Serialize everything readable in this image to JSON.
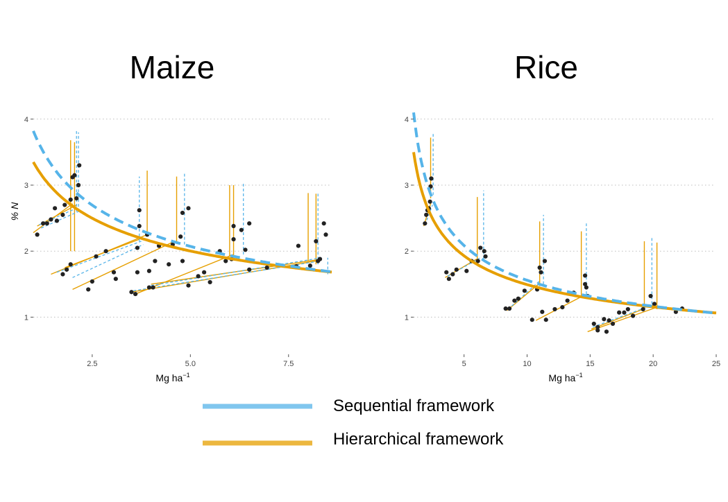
{
  "legend": {
    "items": [
      {
        "label": "Sequential framework",
        "color": "#56B4E9",
        "style": "dashed"
      },
      {
        "label": "Hierarchical framework",
        "color": "#E69F00",
        "style": "solid"
      }
    ]
  },
  "chart_data": [
    {
      "type": "scatter",
      "title": "Maize",
      "xlabel": "Mg ha",
      "xlabel_sup": "−1",
      "ylabel": "% N",
      "xlim": [
        1.0,
        8.6
      ],
      "ylim": [
        0.5,
        4.25
      ],
      "xticks": [
        2.5,
        5.0,
        7.5
      ],
      "xtick_labels": [
        "2.5",
        "5.0",
        "7.5"
      ],
      "yticks": [
        1,
        2,
        3,
        4
      ],
      "ytick_labels": [
        "1",
        "2",
        "3",
        "4"
      ],
      "grid": "horizontal-dotted",
      "point_color": "#222222",
      "points": [
        [
          1.1,
          2.25
        ],
        [
          1.25,
          2.42
        ],
        [
          1.35,
          2.42
        ],
        [
          1.45,
          2.48
        ],
        [
          1.55,
          2.65
        ],
        [
          1.6,
          2.46
        ],
        [
          1.75,
          2.55
        ],
        [
          1.8,
          2.7
        ],
        [
          1.95,
          2.78
        ],
        [
          2.0,
          3.12
        ],
        [
          2.05,
          3.15
        ],
        [
          2.1,
          2.8
        ],
        [
          2.15,
          3.0
        ],
        [
          2.17,
          3.3
        ],
        [
          1.75,
          1.65
        ],
        [
          1.85,
          1.72
        ],
        [
          1.95,
          1.8
        ],
        [
          2.4,
          1.42
        ],
        [
          2.5,
          1.54
        ],
        [
          2.6,
          1.92
        ],
        [
          2.85,
          2.0
        ],
        [
          3.05,
          1.68
        ],
        [
          3.1,
          1.58
        ],
        [
          3.5,
          1.38
        ],
        [
          3.6,
          1.35
        ],
        [
          3.65,
          1.68
        ],
        [
          3.65,
          2.05
        ],
        [
          3.7,
          2.38
        ],
        [
          3.7,
          2.62
        ],
        [
          3.9,
          2.25
        ],
        [
          3.95,
          1.7
        ],
        [
          3.95,
          1.45
        ],
        [
          4.05,
          1.45
        ],
        [
          4.1,
          1.85
        ],
        [
          4.2,
          2.08
        ],
        [
          4.45,
          1.8
        ],
        [
          4.55,
          2.1
        ],
        [
          4.75,
          2.22
        ],
        [
          4.8,
          2.58
        ],
        [
          4.8,
          1.85
        ],
        [
          4.95,
          2.65
        ],
        [
          4.95,
          1.48
        ],
        [
          5.2,
          1.62
        ],
        [
          5.35,
          1.68
        ],
        [
          5.5,
          1.53
        ],
        [
          5.75,
          2.0
        ],
        [
          5.9,
          1.85
        ],
        [
          6.05,
          1.88
        ],
        [
          6.1,
          2.18
        ],
        [
          6.1,
          2.38
        ],
        [
          6.3,
          2.32
        ],
        [
          6.4,
          2.02
        ],
        [
          6.5,
          2.42
        ],
        [
          6.5,
          1.72
        ],
        [
          6.95,
          1.75
        ],
        [
          7.7,
          1.77
        ],
        [
          7.75,
          2.08
        ],
        [
          8.05,
          1.78
        ],
        [
          8.2,
          2.15
        ],
        [
          8.25,
          1.85
        ],
        [
          8.3,
          1.88
        ],
        [
          8.4,
          2.42
        ],
        [
          8.45,
          2.25
        ]
      ],
      "hierarchical_curve": {
        "a": 3.35,
        "b": -0.32,
        "color": "#E69F00"
      },
      "sequential_curve": {
        "a": 3.82,
        "b": -0.38,
        "color": "#56B4E9"
      },
      "hierarchical_segments": [
        [
          [
            1.0,
            2.28
          ],
          [
            2.0,
            2.72
          ]
        ],
        [
          [
            1.1,
            2.38
          ],
          [
            2.1,
            2.7
          ]
        ],
        [
          [
            1.45,
            1.65
          ],
          [
            3.9,
            2.25
          ]
        ],
        [
          [
            1.8,
            1.75
          ],
          [
            3.7,
            2.18
          ]
        ],
        [
          [
            2.0,
            1.42
          ],
          [
            4.6,
            2.15
          ]
        ],
        [
          [
            3.6,
            1.35
          ],
          [
            6.1,
            1.95
          ]
        ],
        [
          [
            3.5,
            1.38
          ],
          [
            8.2,
            1.85
          ]
        ],
        [
          [
            4.0,
            1.5
          ],
          [
            8.25,
            1.87
          ]
        ],
        [
          [
            1.95,
            2.0
          ],
          [
            1.95,
            3.68
          ]
        ],
        [
          [
            2.05,
            2.0
          ],
          [
            2.05,
            3.65
          ]
        ],
        [
          [
            3.9,
            2.25
          ],
          [
            3.9,
            3.22
          ]
        ],
        [
          [
            4.65,
            2.12
          ],
          [
            4.65,
            3.13
          ]
        ],
        [
          [
            6.0,
            1.92
          ],
          [
            6.0,
            3.0
          ]
        ],
        [
          [
            6.1,
            1.9
          ],
          [
            6.1,
            3.0
          ]
        ],
        [
          [
            8.0,
            1.85
          ],
          [
            8.0,
            2.88
          ]
        ],
        [
          [
            8.2,
            1.8
          ],
          [
            8.2,
            2.87
          ]
        ]
      ],
      "sequential_segments": [
        [
          [
            1.15,
            2.4
          ],
          [
            2.1,
            2.65
          ]
        ],
        [
          [
            1.2,
            2.35
          ],
          [
            2.15,
            2.6
          ]
        ],
        [
          [
            1.6,
            1.68
          ],
          [
            3.75,
            2.15
          ]
        ],
        [
          [
            2.0,
            1.6
          ],
          [
            3.8,
            2.1
          ]
        ],
        [
          [
            3.55,
            1.4
          ],
          [
            8.3,
            1.85
          ]
        ],
        [
          [
            4.0,
            1.48
          ],
          [
            8.35,
            1.9
          ]
        ],
        [
          [
            2.1,
            2.6
          ],
          [
            2.1,
            3.82
          ]
        ],
        [
          [
            2.15,
            2.6
          ],
          [
            2.15,
            3.8
          ]
        ],
        [
          [
            3.7,
            2.15
          ],
          [
            3.7,
            3.13
          ]
        ],
        [
          [
            4.85,
            2.1
          ],
          [
            4.85,
            3.18
          ]
        ],
        [
          [
            6.35,
            1.95
          ],
          [
            6.35,
            3.02
          ]
        ],
        [
          [
            8.25,
            1.8
          ],
          [
            8.25,
            2.87
          ]
        ],
        [
          [
            8.5,
            1.65
          ],
          [
            8.5,
            1.9
          ]
        ]
      ]
    },
    {
      "type": "scatter",
      "title": "Rice",
      "xlabel": "Mg ha",
      "xlabel_sup": "−1",
      "ylabel": "",
      "xlim": [
        1.0,
        25.0
      ],
      "ylim": [
        0.5,
        4.25
      ],
      "xticks": [
        5,
        10,
        15,
        20,
        25
      ],
      "xtick_labels": [
        "5",
        "10",
        "15",
        "20",
        "25"
      ],
      "yticks": [
        1,
        2,
        3,
        4
      ],
      "ytick_labels": [
        "1",
        "2",
        "3",
        "4"
      ],
      "grid": "horizontal-dotted",
      "point_color": "#222222",
      "points": [
        [
          1.9,
          2.42
        ],
        [
          2.0,
          2.55
        ],
        [
          2.1,
          2.62
        ],
        [
          2.2,
          2.65
        ],
        [
          2.3,
          2.75
        ],
        [
          2.35,
          2.98
        ],
        [
          2.4,
          3.1
        ],
        [
          3.6,
          1.68
        ],
        [
          3.8,
          1.58
        ],
        [
          4.1,
          1.65
        ],
        [
          4.4,
          1.72
        ],
        [
          5.2,
          1.7
        ],
        [
          5.6,
          1.85
        ],
        [
          6.1,
          1.85
        ],
        [
          6.3,
          2.05
        ],
        [
          6.6,
          2.0
        ],
        [
          6.7,
          1.92
        ],
        [
          8.3,
          1.13
        ],
        [
          8.6,
          1.13
        ],
        [
          9.0,
          1.25
        ],
        [
          9.3,
          1.28
        ],
        [
          9.8,
          1.4
        ],
        [
          10.4,
          0.96
        ],
        [
          10.8,
          1.42
        ],
        [
          11.0,
          1.75
        ],
        [
          11.1,
          1.68
        ],
        [
          11.2,
          1.08
        ],
        [
          11.4,
          1.85
        ],
        [
          11.5,
          0.96
        ],
        [
          12.2,
          1.12
        ],
        [
          12.8,
          1.15
        ],
        [
          13.2,
          1.25
        ],
        [
          13.7,
          1.37
        ],
        [
          14.6,
          1.5
        ],
        [
          14.6,
          1.63
        ],
        [
          14.7,
          1.45
        ],
        [
          14.8,
          1.32
        ],
        [
          15.3,
          0.9
        ],
        [
          15.6,
          0.8
        ],
        [
          15.6,
          0.85
        ],
        [
          16.1,
          0.97
        ],
        [
          16.3,
          0.78
        ],
        [
          16.5,
          0.95
        ],
        [
          16.8,
          0.9
        ],
        [
          17.3,
          1.07
        ],
        [
          17.7,
          1.07
        ],
        [
          18.0,
          1.12
        ],
        [
          18.4,
          1.02
        ],
        [
          19.2,
          1.12
        ],
        [
          19.8,
          1.32
        ],
        [
          20.1,
          1.2
        ],
        [
          21.8,
          1.08
        ],
        [
          22.3,
          1.13
        ]
      ],
      "hierarchical_curve": {
        "a": 3.5,
        "b": -0.37,
        "color": "#E69F00"
      },
      "sequential_curve": {
        "a": 4.1,
        "b": -0.42,
        "color": "#56B4E9"
      },
      "hierarchical_segments": [
        [
          [
            1.8,
            2.38
          ],
          [
            2.4,
            2.75
          ]
        ],
        [
          [
            3.5,
            1.6
          ],
          [
            6.0,
            1.88
          ]
        ],
        [
          [
            8.4,
            1.1
          ],
          [
            10.9,
            1.5
          ]
        ],
        [
          [
            10.7,
            0.95
          ],
          [
            14.2,
            1.3
          ]
        ],
        [
          [
            15.1,
            0.82
          ],
          [
            19.2,
            1.12
          ]
        ],
        [
          [
            14.8,
            0.78
          ],
          [
            20.3,
            1.15
          ]
        ],
        [
          [
            2.35,
            2.8
          ],
          [
            2.35,
            3.72
          ]
        ],
        [
          [
            6.05,
            1.85
          ],
          [
            6.05,
            2.82
          ]
        ],
        [
          [
            11.0,
            1.47
          ],
          [
            11.0,
            2.45
          ]
        ],
        [
          [
            14.3,
            1.32
          ],
          [
            14.3,
            2.3
          ]
        ],
        [
          [
            19.3,
            1.12
          ],
          [
            19.3,
            2.15
          ]
        ],
        [
          [
            20.3,
            1.12
          ],
          [
            20.3,
            2.13
          ]
        ]
      ],
      "sequential_segments": [
        [
          [
            1.9,
            2.4
          ],
          [
            2.5,
            2.7
          ]
        ],
        [
          [
            3.7,
            1.62
          ],
          [
            6.3,
            1.9
          ]
        ],
        [
          [
            8.5,
            1.12
          ],
          [
            11.0,
            1.55
          ]
        ],
        [
          [
            15.2,
            0.85
          ],
          [
            20.2,
            1.2
          ]
        ],
        [
          [
            2.55,
            2.85
          ],
          [
            2.55,
            3.78
          ]
        ],
        [
          [
            6.55,
            1.88
          ],
          [
            6.55,
            2.92
          ]
        ],
        [
          [
            11.3,
            1.5
          ],
          [
            11.3,
            2.55
          ]
        ],
        [
          [
            14.7,
            1.35
          ],
          [
            14.7,
            2.42
          ]
        ],
        [
          [
            19.9,
            1.2
          ],
          [
            19.9,
            2.22
          ]
        ]
      ]
    }
  ]
}
